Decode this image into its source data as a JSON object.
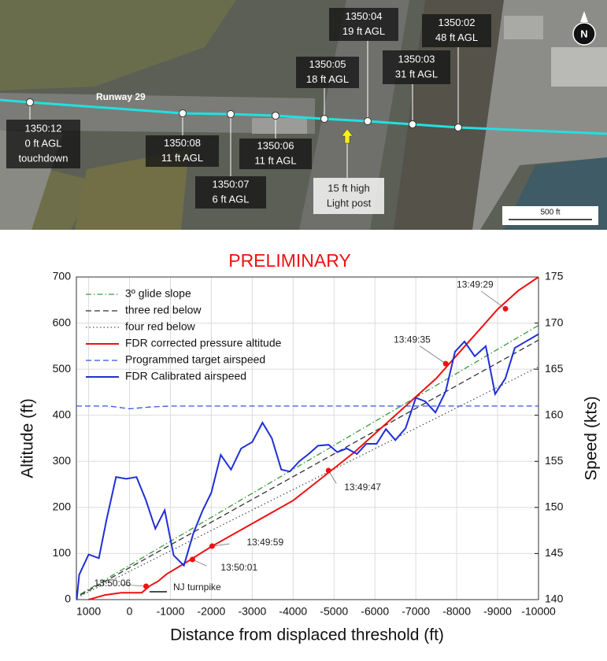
{
  "photo": {
    "runway_label": "Runway 29",
    "callouts": [
      {
        "lines": [
          "1350:12",
          "0 ft AGL",
          "touchdown"
        ]
      },
      {
        "lines": [
          "1350:08",
          "11 ft AGL"
        ]
      },
      {
        "lines": [
          "1350:07",
          "6 ft AGL"
        ]
      },
      {
        "lines": [
          "1350:06",
          "11 ft AGL"
        ]
      },
      {
        "lines": [
          "1350:05",
          "18 ft AGL"
        ]
      },
      {
        "lines": [
          "1350:04",
          "19 ft AGL"
        ]
      },
      {
        "lines": [
          "1350:03",
          "31 ft AGL"
        ]
      },
      {
        "lines": [
          "1350:02",
          "48 ft AGL"
        ]
      }
    ],
    "light_post": {
      "lines": [
        "15 ft high",
        "Light post"
      ]
    },
    "scale": "500 ft",
    "north": "N"
  },
  "chart_data": {
    "type": "line",
    "title": "PRELIMINARY",
    "xlabel": "Distance from displaced threshold (ft)",
    "ylabel": "Altitude (ft)",
    "y2label": "Speed (kts)",
    "xlim": [
      1300,
      -10000
    ],
    "xticks": [
      1000,
      0,
      -1000,
      -2000,
      -3000,
      -4000,
      -5000,
      -6000,
      -7000,
      -8000,
      -9000,
      -10000
    ],
    "ylim": [
      0,
      700
    ],
    "yticks": [
      0,
      100,
      200,
      300,
      400,
      500,
      600,
      700
    ],
    "y2lim": [
      140,
      175
    ],
    "y2ticks": [
      140,
      145,
      150,
      155,
      160,
      165,
      170,
      175
    ],
    "grid": true,
    "legend": "upper-left",
    "series": [
      {
        "name": "3º glide slope",
        "color": "#3a9a3a",
        "dash": "dashdot",
        "x": [
          1200,
          -10000
        ],
        "values": [
          12,
          595
        ]
      },
      {
        "name": "three red below",
        "color": "#333333",
        "dash": "dash",
        "x": [
          1200,
          -10000
        ],
        "values": [
          10,
          563
        ]
      },
      {
        "name": "four red below",
        "color": "#555555",
        "dash": "dot",
        "x": [
          1200,
          -10000
        ],
        "values": [
          8,
          505
        ]
      },
      {
        "name": "FDR corrected pressure altitude",
        "color": "#ee1111",
        "dash": "solid",
        "x": [
          1000,
          600,
          200,
          -300,
          -500,
          -700,
          -900,
          -1500,
          -2000,
          -2500,
          -3000,
          -3500,
          -4000,
          -4500,
          -5000,
          -5500,
          -6000,
          -6500,
          -7000,
          -7500,
          -8000,
          -8500,
          -9000,
          -9500,
          -10000
        ],
        "values": [
          0,
          10,
          15,
          15,
          30,
          40,
          55,
          87,
          115,
          140,
          165,
          190,
          215,
          250,
          285,
          320,
          360,
          400,
          440,
          480,
          530,
          580,
          630,
          670,
          700
        ]
      },
      {
        "name": "Programmed target airspeed",
        "color": "#3355dd",
        "dash": "dash",
        "axis": "y2",
        "x": [
          1300,
          500,
          0,
          -500,
          -1000,
          -10000
        ],
        "values": [
          161,
          161,
          160.7,
          160.9,
          161,
          161
        ]
      },
      {
        "name": "FDR Calibrated airspeed",
        "color": "#1f2fd6",
        "dash": "solid",
        "axis": "y2",
        "x": [
          1290,
          1230,
          1000,
          750,
          560,
          330,
          80,
          -170,
          -400,
          -630,
          -860,
          -1080,
          -1330,
          -1560,
          -1790,
          -2000,
          -2230,
          -2480,
          -2730,
          -3000,
          -3250,
          -3480,
          -3710,
          -3920,
          -4150,
          -4380,
          -4610,
          -4870,
          -5080,
          -5310,
          -5560,
          -5790,
          -6040,
          -6270,
          -6500,
          -6750,
          -7000,
          -7230,
          -7480,
          -7730,
          -7960,
          -8190,
          -8440,
          -8710,
          -8940,
          -9190,
          -9420,
          -9650,
          -10000
        ],
        "values": [
          140,
          142.7,
          144.9,
          144.5,
          148.7,
          153.3,
          153.1,
          153.3,
          150.8,
          147.7,
          149.7,
          144.8,
          143.7,
          147.2,
          149.7,
          151.6,
          155.7,
          154.1,
          156.4,
          157.1,
          159.2,
          157.5,
          154.1,
          153.9,
          155,
          155.8,
          156.7,
          156.8,
          156,
          156.4,
          155.8,
          156.9,
          156.9,
          158.5,
          157.3,
          158.6,
          161.9,
          161.5,
          160.3,
          162.6,
          166.9,
          168,
          166.4,
          167.5,
          162.3,
          164,
          167.3,
          167.9,
          168.8
        ]
      }
    ],
    "markers": [
      {
        "label": "13:50:06",
        "x": -404,
        "value": 29
      },
      {
        "label": "13:50:01",
        "x": -1538,
        "value": 87
      },
      {
        "label": "13:49:59",
        "x": -2019,
        "value": 116
      },
      {
        "label": "13:49:47",
        "x": -4865,
        "value": 280
      },
      {
        "label": "13:49:35",
        "x": -7731,
        "value": 512
      },
      {
        "label": "13:49:29",
        "x": -9192,
        "value": 631
      }
    ],
    "annotations": [
      "NJ turnpike"
    ]
  }
}
